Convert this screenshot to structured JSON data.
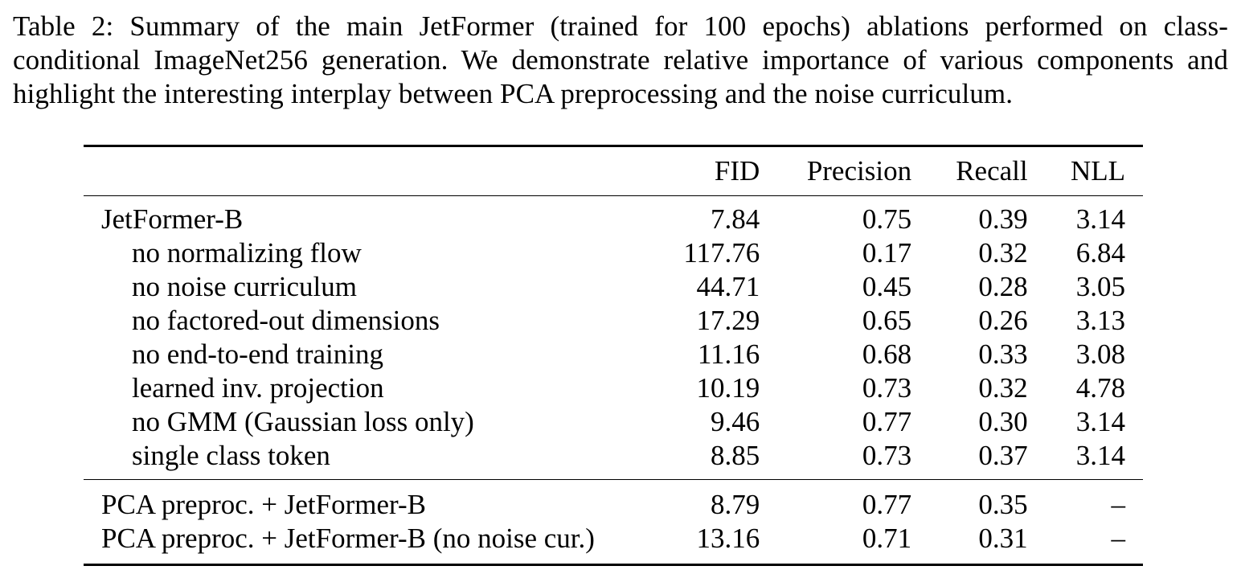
{
  "caption": "Table 2: Summary of the main JetFormer (trained for 100 epochs) ablations performed on class-conditional ImageNet256 generation. We demonstrate relative importance of various components and highlight the interesting interplay between PCA preprocessing and the noise curriculum.",
  "table": {
    "headers": {
      "label": "",
      "fid": "FID",
      "precision": "Precision",
      "recall": "Recall",
      "nll": "NLL"
    },
    "group1": [
      {
        "label": "JetFormer-B",
        "fid": "7.84",
        "precision": "0.75",
        "recall": "0.39",
        "nll": "3.14"
      },
      {
        "label": "no normalizing flow",
        "fid": "117.76",
        "precision": "0.17",
        "recall": "0.32",
        "nll": "6.84"
      },
      {
        "label": "no noise curriculum",
        "fid": "44.71",
        "precision": "0.45",
        "recall": "0.28",
        "nll": "3.05"
      },
      {
        "label": "no factored-out dimensions",
        "fid": "17.29",
        "precision": "0.65",
        "recall": "0.26",
        "nll": "3.13"
      },
      {
        "label": "no end-to-end training",
        "fid": "11.16",
        "precision": "0.68",
        "recall": "0.33",
        "nll": "3.08"
      },
      {
        "label": "learned inv. projection",
        "fid": "10.19",
        "precision": "0.73",
        "recall": "0.32",
        "nll": "4.78"
      },
      {
        "label": "no GMM (Gaussian loss only)",
        "fid": "9.46",
        "precision": "0.77",
        "recall": "0.30",
        "nll": "3.14"
      },
      {
        "label": "single class token",
        "fid": "8.85",
        "precision": "0.73",
        "recall": "0.37",
        "nll": "3.14"
      }
    ],
    "group2": [
      {
        "label": "PCA preproc. + JetFormer-B",
        "fid": "8.79",
        "precision": "0.77",
        "recall": "0.35",
        "nll": "–"
      },
      {
        "label": "PCA preproc. + JetFormer-B (no noise cur.)",
        "fid": "13.16",
        "precision": "0.71",
        "recall": "0.31",
        "nll": "–"
      }
    ]
  }
}
